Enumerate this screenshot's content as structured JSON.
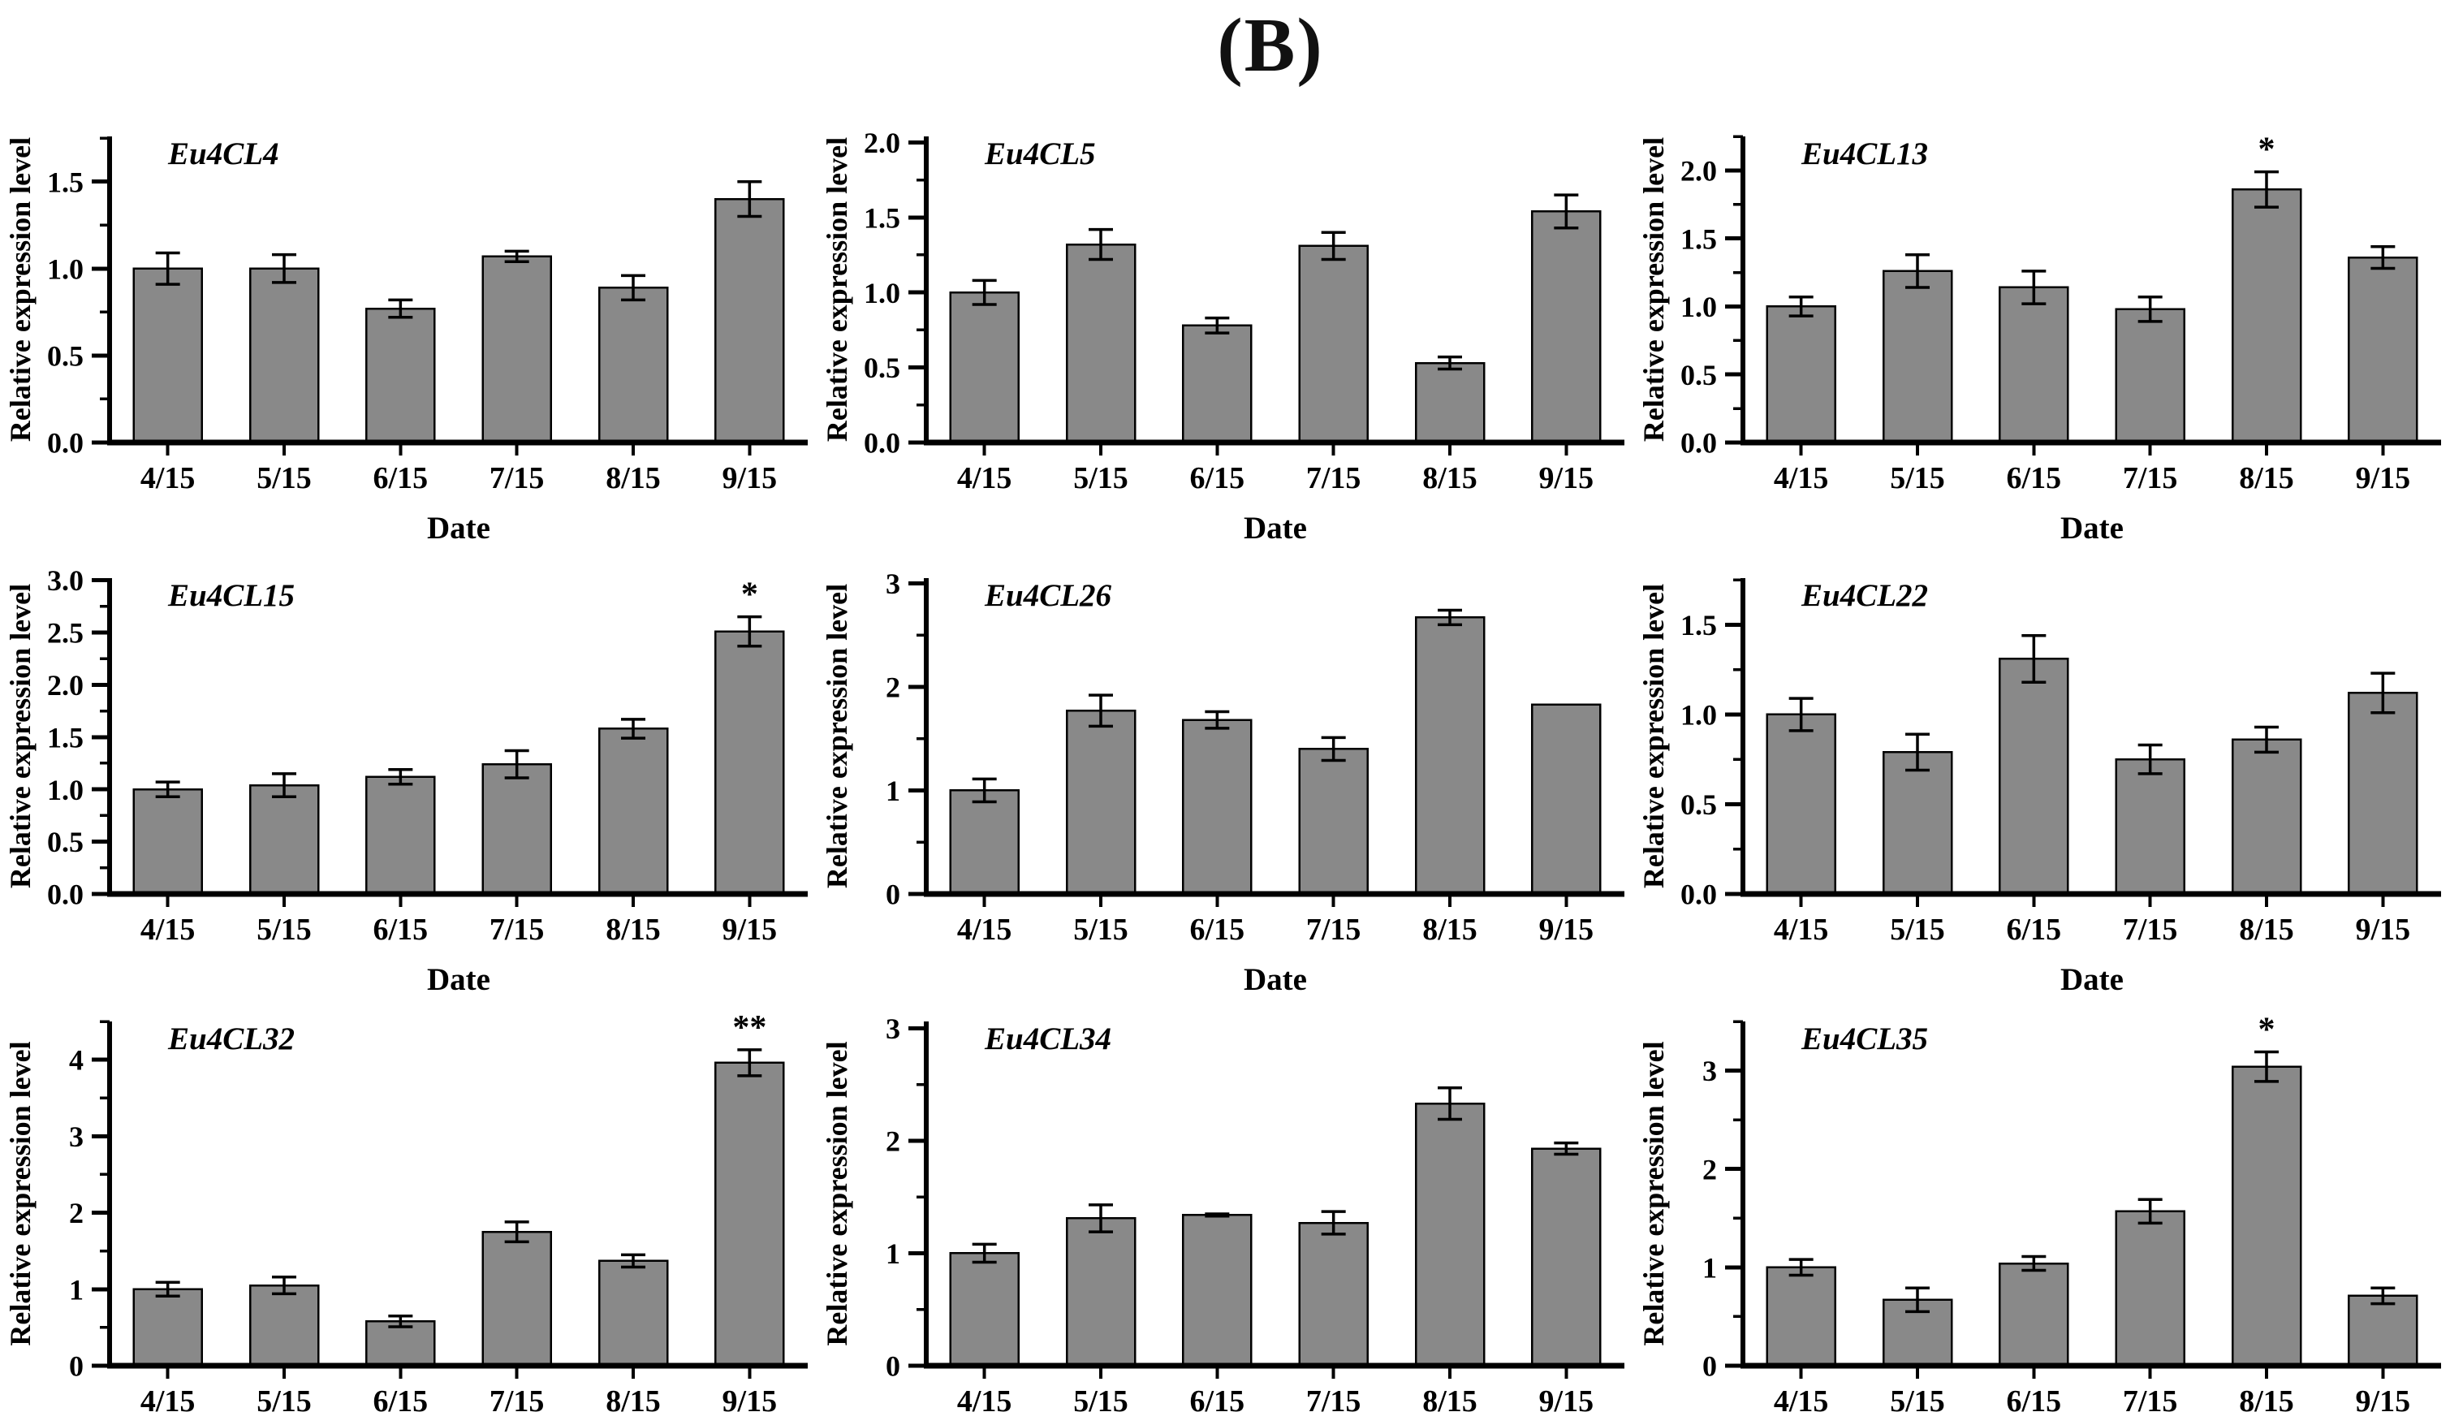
{
  "title": "(B)",
  "axes": {
    "ylabel": "Relative expression level",
    "xlabel": "Date",
    "categories": [
      "4/15",
      "5/15",
      "6/15",
      "7/15",
      "8/15",
      "9/15"
    ]
  },
  "style": {
    "bar_color": "#898989",
    "bar_edge": "#000000",
    "axis_color": "#000000",
    "text_color": "#000000"
  },
  "chart_data": [
    {
      "type": "bar",
      "gene": "Eu4CL4",
      "ylabel": "Relative expression level",
      "xlabel": "Date",
      "categories": [
        "4/15",
        "5/15",
        "6/15",
        "7/15",
        "8/15",
        "9/15"
      ],
      "yticks": [
        "0.0",
        "0.5",
        "1.0",
        "1.5"
      ],
      "ylim": [
        0,
        1.76
      ],
      "values": [
        1.0,
        1.0,
        0.77,
        1.07,
        0.89,
        1.4
      ],
      "errors": [
        0.09,
        0.08,
        0.05,
        0.03,
        0.07,
        0.1
      ],
      "sig": [
        "",
        "",
        "",
        "",
        "",
        ""
      ]
    },
    {
      "type": "bar",
      "gene": "Eu4CL5",
      "ylabel": "Relative expression level",
      "xlabel": "Date",
      "categories": [
        "4/15",
        "5/15",
        "6/15",
        "7/15",
        "8/15",
        "9/15"
      ],
      "yticks": [
        "0.0",
        "0.5",
        "1.0",
        "1.5",
        "2.0"
      ],
      "ylim": [
        0,
        2.04
      ],
      "values": [
        1.0,
        1.32,
        0.78,
        1.31,
        0.53,
        1.54
      ],
      "errors": [
        0.08,
        0.1,
        0.05,
        0.09,
        0.04,
        0.11
      ],
      "sig": [
        "",
        "",
        "",
        "",
        "",
        ""
      ]
    },
    {
      "type": "bar",
      "gene": "Eu4CL13",
      "ylabel": "Relative expression level",
      "xlabel": "Date",
      "categories": [
        "4/15",
        "5/15",
        "6/15",
        "7/15",
        "8/15",
        "9/15"
      ],
      "yticks": [
        "0.0",
        "0.5",
        "1.0",
        "1.5",
        "2.0"
      ],
      "ylim": [
        0,
        2.25
      ],
      "values": [
        1.0,
        1.26,
        1.14,
        0.98,
        1.86,
        1.36
      ],
      "errors": [
        0.07,
        0.12,
        0.12,
        0.09,
        0.13,
        0.08
      ],
      "sig": [
        "",
        "",
        "",
        "",
        "*",
        ""
      ]
    },
    {
      "type": "bar",
      "gene": "Eu4CL15",
      "ylabel": "Relative expression level",
      "xlabel": "Date",
      "categories": [
        "4/15",
        "5/15",
        "6/15",
        "7/15",
        "8/15",
        "9/15"
      ],
      "yticks": [
        "0.0",
        "0.5",
        "1.0",
        "1.5",
        "2.0",
        "2.5",
        "3.0"
      ],
      "ylim": [
        0,
        3.02
      ],
      "values": [
        1.0,
        1.04,
        1.12,
        1.24,
        1.58,
        2.51
      ],
      "errors": [
        0.07,
        0.11,
        0.07,
        0.13,
        0.09,
        0.14
      ],
      "sig": [
        "",
        "",
        "",
        "",
        "",
        "*"
      ]
    },
    {
      "type": "bar",
      "gene": "Eu4CL26",
      "ylabel": "Relative expression level",
      "xlabel": "Date",
      "categories": [
        "4/15",
        "5/15",
        "6/15",
        "7/15",
        "8/15",
        "9/15"
      ],
      "yticks": [
        "0",
        "1",
        "2",
        "3"
      ],
      "ylim": [
        0,
        3.05
      ],
      "values": [
        1.0,
        1.77,
        1.68,
        1.4,
        2.67,
        1.83
      ],
      "errors": [
        0.11,
        0.15,
        0.08,
        0.11,
        0.07,
        0
      ],
      "sig": [
        "",
        "",
        "",
        "",
        "",
        ""
      ]
    },
    {
      "type": "bar",
      "gene": "Eu4CL22",
      "ylabel": "Relative expression level",
      "xlabel": "Date",
      "categories": [
        "4/15",
        "5/15",
        "6/15",
        "7/15",
        "8/15",
        "9/15"
      ],
      "yticks": [
        "0.0",
        "0.5",
        "1.0",
        "1.5"
      ],
      "ylim": [
        0,
        1.76
      ],
      "values": [
        1.0,
        0.79,
        1.31,
        0.75,
        0.86,
        1.12
      ],
      "errors": [
        0.09,
        0.1,
        0.13,
        0.08,
        0.07,
        0.11
      ],
      "sig": [
        "",
        "",
        "",
        "",
        "",
        ""
      ]
    },
    {
      "type": "bar",
      "gene": "Eu4CL32",
      "ylabel": "Relative expression level",
      "xlabel": "",
      "categories": [
        "4/15",
        "5/15",
        "6/15",
        "7/15",
        "8/15",
        "9/15"
      ],
      "yticks": [
        "0",
        "1",
        "2",
        "3",
        "4"
      ],
      "ylim": [
        0,
        4.5
      ],
      "values": [
        1.0,
        1.05,
        0.58,
        1.75,
        1.37,
        3.96
      ],
      "errors": [
        0.09,
        0.11,
        0.07,
        0.13,
        0.08,
        0.17
      ],
      "sig": [
        "",
        "",
        "",
        "",
        "",
        "**"
      ]
    },
    {
      "type": "bar",
      "gene": "Eu4CL34",
      "ylabel": "Relative expression level",
      "xlabel": "",
      "categories": [
        "4/15",
        "5/15",
        "6/15",
        "7/15",
        "8/15",
        "9/15"
      ],
      "yticks": [
        "0",
        "1",
        "2",
        "3"
      ],
      "ylim": [
        0,
        3.06
      ],
      "values": [
        1.0,
        1.31,
        1.34,
        1.27,
        2.33,
        1.93
      ],
      "errors": [
        0.08,
        0.12,
        0.01,
        0.1,
        0.14,
        0.05
      ],
      "sig": [
        "",
        "",
        "",
        "",
        "",
        ""
      ]
    },
    {
      "type": "bar",
      "gene": "Eu4CL35",
      "ylabel": "Relative expression level",
      "xlabel": "",
      "categories": [
        "4/15",
        "5/15",
        "6/15",
        "7/15",
        "8/15",
        "9/15"
      ],
      "yticks": [
        "0",
        "1",
        "2",
        "3"
      ],
      "ylim": [
        0,
        3.5
      ],
      "values": [
        1.0,
        0.67,
        1.04,
        1.57,
        3.04,
        0.71
      ],
      "errors": [
        0.08,
        0.12,
        0.07,
        0.12,
        0.15,
        0.08
      ],
      "sig": [
        "",
        "",
        "",
        "",
        "*",
        ""
      ]
    }
  ]
}
